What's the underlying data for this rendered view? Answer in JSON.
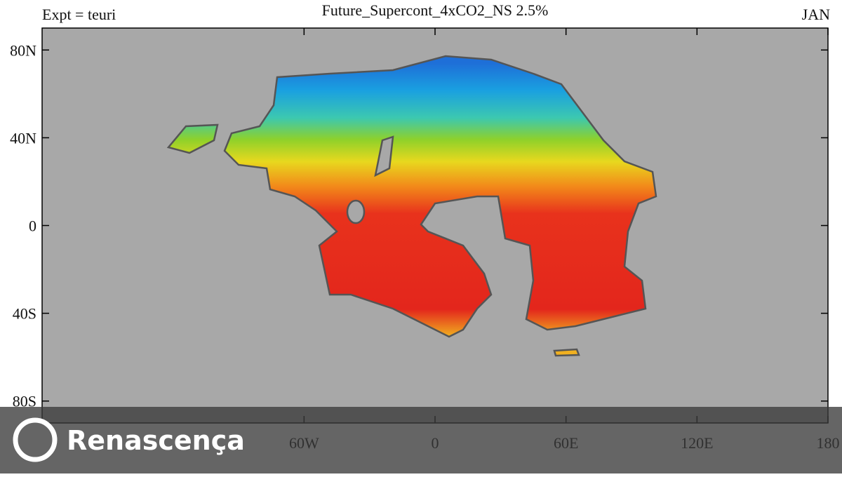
{
  "header": {
    "left": "Expt = teuri",
    "title": "Future_Supercont_4xCO2_NS 2.5%",
    "right": "JAN"
  },
  "axes": {
    "xlim": [
      -180,
      180
    ],
    "ylim": [
      -90,
      90
    ],
    "xticks": [
      {
        "value": -60,
        "label": "60W"
      },
      0,
      {
        "value": 60,
        "label": "60E"
      },
      {
        "value": 120,
        "label": "120E"
      },
      180
    ],
    "yticks": [
      {
        "value": 80,
        "label": "80N"
      },
      {
        "value": 40,
        "label": "40N"
      },
      0,
      {
        "value": -40,
        "label": "40S"
      },
      {
        "value": -80,
        "label": "80S"
      }
    ]
  },
  "watermark": "Renascença"
}
